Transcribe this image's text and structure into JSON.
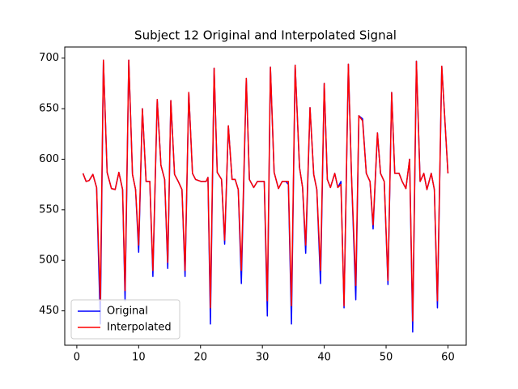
{
  "chart_data": {
    "type": "line",
    "title": "Subject 12 Original and Interpolated Signal",
    "x": [
      1,
      1.5,
      2,
      2.6,
      3.2,
      3.8,
      4.3,
      4.9,
      5.6,
      6.2,
      6.8,
      7.4,
      7.8,
      8.4,
      9,
      9.5,
      10,
      10.6,
      11.2,
      11.8,
      12.3,
      13,
      13.6,
      14.2,
      14.7,
      15.2,
      15.8,
      16.4,
      17,
      17.5,
      18.1,
      18.7,
      19.2,
      20.1,
      20.9,
      21.2,
      21.6,
      22.2,
      22.7,
      23.4,
      23.9,
      24.5,
      25.1,
      25.6,
      26.1,
      26.6,
      27.4,
      27.9,
      28.6,
      29.2,
      30,
      30.3,
      30.8,
      31.3,
      31.9,
      32.6,
      33.2,
      33.8,
      34.2,
      34.7,
      35.3,
      36,
      36.5,
      37,
      37.7,
      38.3,
      38.8,
      39.4,
      40,
      40.5,
      41,
      41.7,
      42.2,
      42.7,
      43.2,
      43.9,
      44.4,
      45.1,
      45.6,
      46.2,
      46.8,
      47.4,
      47.9,
      48.6,
      49.1,
      49.7,
      50.3,
      50.9,
      51.4,
      52.1,
      52.6,
      53.2,
      53.8,
      54.3,
      54.9,
      55.5,
      56.1,
      56.6,
      57.3,
      57.8,
      58.3,
      59,
      60
    ],
    "series": [
      {
        "name": "Original",
        "color": "#0000ff",
        "values": [
          586,
          578,
          579,
          585,
          572,
          437,
          698,
          587,
          571,
          570,
          587,
          570,
          460,
          698,
          585,
          570,
          508,
          650,
          578,
          578,
          484,
          659,
          594,
          580,
          492,
          658,
          585,
          578,
          570,
          484,
          666,
          586,
          580,
          578,
          578,
          582,
          437,
          690,
          587,
          580,
          516,
          633,
          580,
          580,
          570,
          477,
          680,
          580,
          572,
          578,
          578,
          578,
          445,
          691,
          587,
          571,
          578,
          578,
          575,
          437,
          693,
          592,
          572,
          507,
          651,
          585,
          570,
          477,
          675,
          580,
          572,
          586,
          572,
          578,
          453,
          694,
          585,
          461,
          643,
          640,
          586,
          578,
          531,
          626,
          586,
          578,
          476,
          666,
          586,
          586,
          578,
          571,
          600,
          429,
          697,
          578,
          586,
          570,
          586,
          570,
          453,
          692,
          586
        ]
      },
      {
        "name": "Interpolated",
        "color": "#ff0000",
        "values": [
          586,
          578,
          579,
          585,
          572,
          460,
          698,
          587,
          571,
          570,
          587,
          570,
          470,
          698,
          585,
          570,
          515,
          650,
          578,
          578,
          490,
          659,
          594,
          580,
          498,
          658,
          585,
          578,
          570,
          490,
          666,
          586,
          580,
          578,
          578,
          582,
          453,
          690,
          587,
          580,
          520,
          633,
          580,
          580,
          570,
          490,
          680,
          580,
          572,
          578,
          578,
          578,
          460,
          691,
          587,
          571,
          578,
          578,
          578,
          455,
          693,
          592,
          572,
          515,
          651,
          585,
          570,
          490,
          675,
          580,
          572,
          586,
          572,
          575,
          455,
          694,
          585,
          475,
          643,
          638,
          586,
          578,
          535,
          626,
          586,
          578,
          480,
          666,
          586,
          586,
          578,
          571,
          600,
          440,
          697,
          578,
          586,
          570,
          586,
          570,
          460,
          692,
          586
        ]
      }
    ],
    "xlim": [
      -1.95,
      62.95
    ],
    "xticks": [
      0,
      10,
      20,
      30,
      40,
      50,
      60
    ],
    "ylim": [
      416,
      711
    ],
    "yticks": [
      450,
      500,
      550,
      600,
      650,
      700
    ],
    "legend": "lower left"
  }
}
